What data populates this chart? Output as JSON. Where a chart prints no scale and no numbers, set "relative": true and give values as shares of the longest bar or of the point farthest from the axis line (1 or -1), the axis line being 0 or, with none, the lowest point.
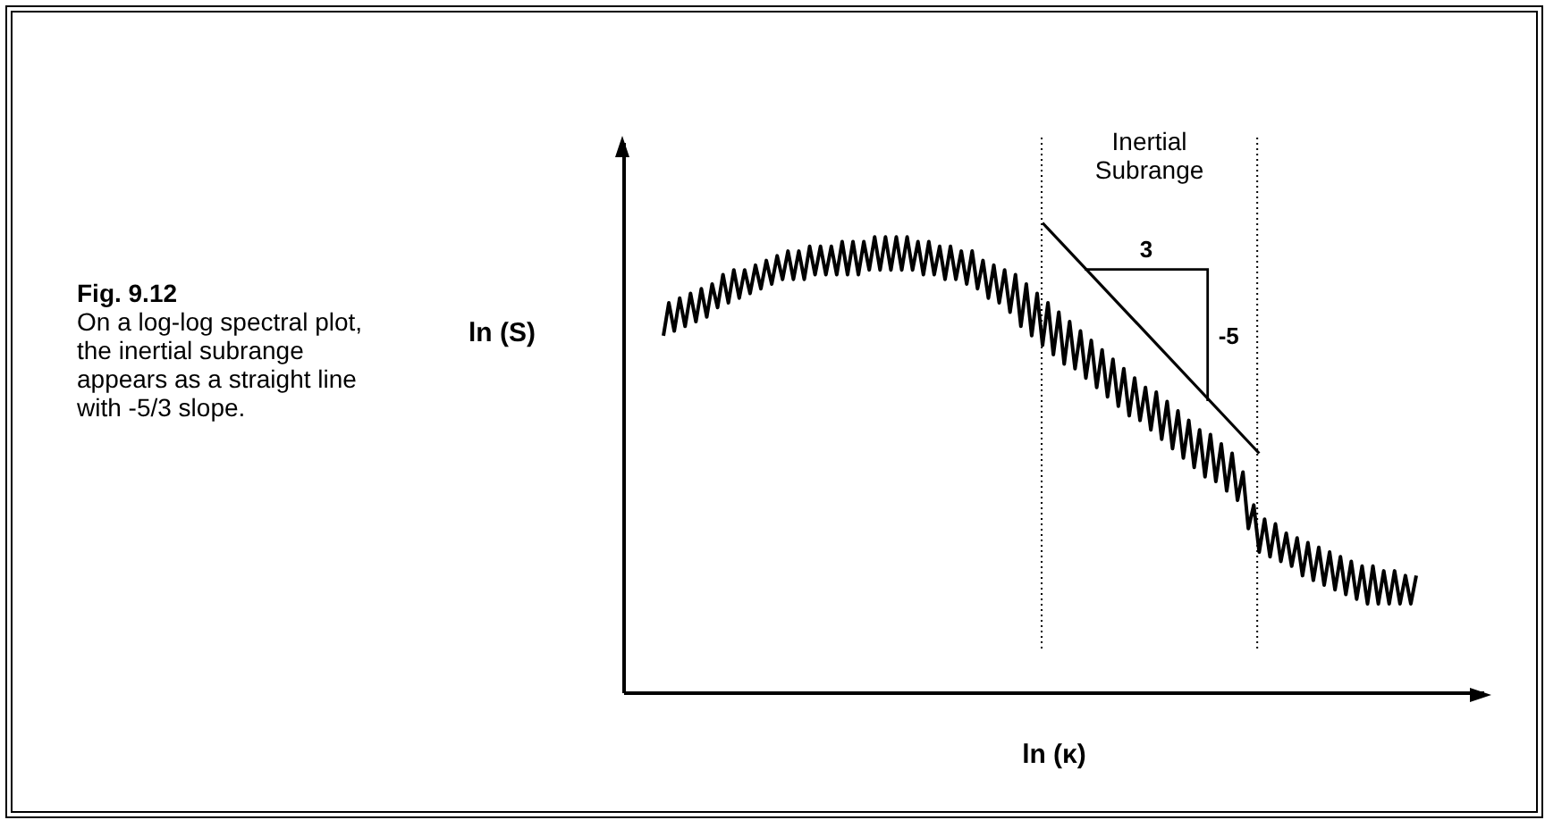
{
  "chart_data": {
    "type": "line",
    "title": "Fig. 9.12",
    "subtitle": "On a log-log spectral plot, the inertial subrange appears as a straight line with -5/3 slope.",
    "xlabel": "ln (κ)",
    "ylabel": "ln (S)",
    "relative": true,
    "categories": [
      null,
      null,
      null,
      null,
      null,
      null,
      null,
      null,
      null,
      null,
      null,
      null,
      null,
      null,
      null,
      null,
      null,
      null,
      null,
      null,
      null,
      null,
      null,
      null,
      null,
      null,
      null,
      null,
      null,
      null,
      null,
      null,
      null,
      null,
      null,
      null,
      null,
      null,
      null,
      null,
      null,
      null,
      null,
      null,
      null,
      null,
      null,
      null,
      null,
      null,
      null,
      null,
      null,
      null,
      null,
      null,
      null,
      null,
      null,
      null,
      null,
      null,
      null,
      null,
      null,
      null,
      null,
      null,
      null,
      null,
      null,
      null,
      null,
      null,
      null,
      null,
      null,
      null,
      null,
      null,
      null,
      null,
      null,
      null,
      null,
      null,
      null,
      null,
      null,
      null,
      null,
      null,
      null,
      null,
      null,
      null,
      null,
      null,
      null,
      null,
      null,
      null,
      null,
      null,
      null,
      null,
      null,
      null,
      null,
      null,
      null,
      null,
      null,
      null,
      null,
      null,
      null,
      null,
      null,
      null,
      null,
      null,
      null,
      null,
      null,
      null,
      null,
      null,
      null,
      null,
      null,
      null,
      null,
      null,
      null,
      null,
      null,
      null,
      null,
      null
    ],
    "series": [
      {
        "type": "line",
        "color": "#000000",
        "values": [
          0.76,
          0.83,
          0.77,
          0.84,
          0.78,
          0.85,
          0.79,
          0.86,
          0.8,
          0.87,
          0.82,
          0.89,
          0.83,
          0.9,
          0.84,
          0.9,
          0.85,
          0.91,
          0.86,
          0.92,
          0.87,
          0.93,
          0.88,
          0.94,
          0.88,
          0.94,
          0.88,
          0.95,
          0.89,
          0.95,
          0.89,
          0.95,
          0.89,
          0.96,
          0.89,
          0.96,
          0.89,
          0.96,
          0.9,
          0.97,
          0.9,
          0.97,
          0.9,
          0.97,
          0.9,
          0.97,
          0.9,
          0.96,
          0.89,
          0.96,
          0.89,
          0.95,
          0.88,
          0.95,
          0.88,
          0.94,
          0.87,
          0.94,
          0.86,
          0.92,
          0.84,
          0.91,
          0.83,
          0.9,
          0.81,
          0.89,
          0.78,
          0.87,
          0.76,
          0.85,
          0.74,
          0.83,
          0.72,
          0.81,
          0.7,
          0.79,
          0.69,
          0.77,
          0.67,
          0.75,
          0.65,
          0.73,
          0.63,
          0.71,
          0.61,
          0.69,
          0.59,
          0.67,
          0.58,
          0.65,
          0.56,
          0.64,
          0.54,
          0.62,
          0.52,
          0.6,
          0.5,
          0.58,
          0.48,
          0.56,
          0.46,
          0.55,
          0.45,
          0.53,
          0.43,
          0.51,
          0.41,
          0.47,
          0.35,
          0.4,
          0.3,
          0.37,
          0.29,
          0.36,
          0.28,
          0.34,
          0.27,
          0.33,
          0.25,
          0.32,
          0.24,
          0.31,
          0.23,
          0.3,
          0.22,
          0.29,
          0.21,
          0.28,
          0.2,
          0.27,
          0.19,
          0.27,
          0.19,
          0.26,
          0.19,
          0.26,
          0.19,
          0.25,
          0.19,
          0.25
        ]
      },
      {
        "type": "line",
        "color": "#000000",
        "values": [
          null,
          null,
          null,
          null,
          null,
          null,
          null,
          null,
          null,
          null,
          null,
          null,
          null,
          null,
          null,
          null,
          null,
          null,
          null,
          null,
          null,
          null,
          null,
          null,
          null,
          null,
          null,
          null,
          null,
          null,
          null,
          null,
          null,
          null,
          null,
          null,
          null,
          null,
          null,
          null,
          null,
          null,
          null,
          null,
          null,
          null,
          null,
          null,
          null,
          null,
          null,
          null,
          null,
          null,
          null,
          null,
          null,
          null,
          null,
          null,
          null,
          null,
          null,
          null,
          null,
          null,
          null,
          null,
          null,
          null,
          1,
          null,
          null,
          null,
          null,
          null,
          null,
          null,
          null,
          null,
          null,
          null,
          null,
          null,
          null,
          null,
          null,
          null,
          null,
          null,
          null,
          null,
          null,
          null,
          null,
          null,
          null,
          null,
          null,
          null,
          null,
          null,
          null,
          null,
          null,
          null,
          null,
          null,
          null,
          null,
          0.51,
          null,
          null,
          null,
          null,
          null,
          null,
          null,
          null,
          null,
          null,
          null,
          null,
          null,
          null,
          null,
          null,
          null,
          null,
          null,
          null,
          null,
          null,
          null,
          null,
          null,
          null,
          null,
          null,
          null
        ]
      }
    ],
    "annotations": [
      "Inertial Subrange",
      "3",
      "-5"
    ]
  }
}
